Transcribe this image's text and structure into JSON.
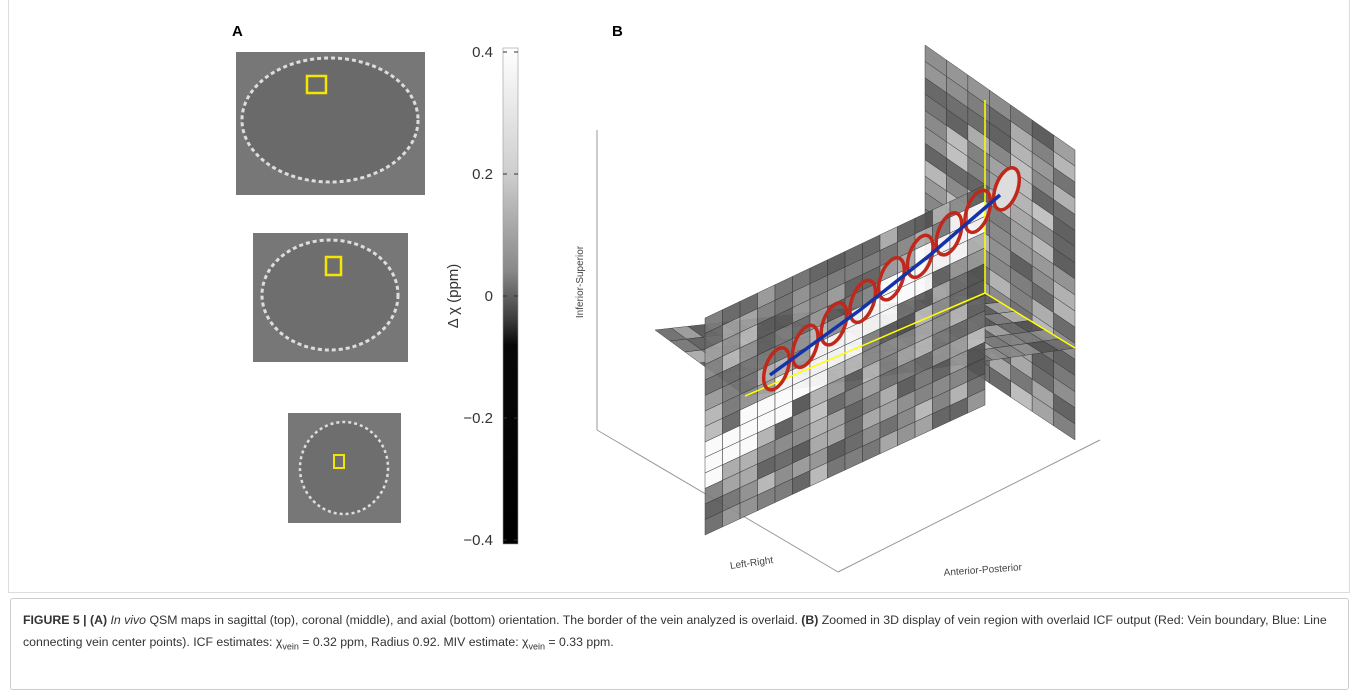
{
  "figure": {
    "panel_a": {
      "label": "A",
      "colorbar": {
        "label": "Δ χ (ppm)",
        "lim": [
          -0.4,
          0.4
        ],
        "ticks": [
          0.4,
          0.2,
          0,
          {
            "value": -0.2,
            "label": "−0.2"
          },
          {
            "value": -0.4,
            "label": "−0.4"
          }
        ]
      }
    },
    "panel_b": {
      "label": "B",
      "axis_labels": {
        "vertical": "Inferior-Superior",
        "left": "Left-Right",
        "right": "Anterior-Posterior"
      }
    }
  },
  "caption": [
    "FIGURE 5 | (A)",
    "In vivo",
    " QSM maps in sagittal (top), coronal (middle), and axial (bottom) orientation. The border of the vein analyzed is overlaid. ",
    "(B)",
    " Zoomed in 3D display of vein region with overlaid ICF output (Red: Vein boundary, Blue: Line connecting vein center points). ICF estimates: χ",
    "vein",
    " = 0.32 ppm, Radius 0.92. MIV estimate: χ",
    "vein",
    " = 0.33 ppm."
  ]
}
